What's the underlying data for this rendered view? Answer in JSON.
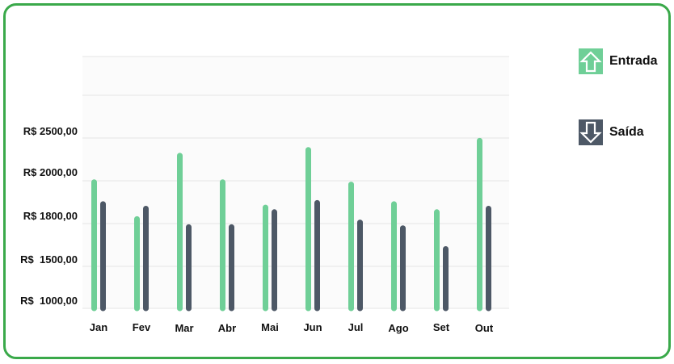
{
  "chart_data": {
    "type": "bar",
    "categories": [
      "Jan",
      "Fev",
      "Mar",
      "Abr",
      "Mai",
      "Jun",
      "Jul",
      "Ago",
      "Set",
      "Out"
    ],
    "y_tick_labels": [
      "R$ 2500,00",
      "R$ 2000,00",
      "R$ 1800,00",
      "R$  1500,00",
      "R$  1000,00"
    ],
    "series": [
      {
        "name": "Entrada",
        "color": "#6fcf97",
        "icon": "arrow-up-icon",
        "values": [
          2120,
          1800,
          2350,
          2120,
          1900,
          2400,
          2100,
          1930,
          1860,
          2480
        ]
      },
      {
        "name": "Saída",
        "color": "#4d5866",
        "icon": "arrow-down-icon",
        "values": [
          1930,
          1890,
          1730,
          1730,
          1860,
          1940,
          1770,
          1720,
          1540,
          1890
        ]
      }
    ],
    "ylim": [
      1000,
      2500
    ],
    "grid": true,
    "legend_position": "right"
  }
}
